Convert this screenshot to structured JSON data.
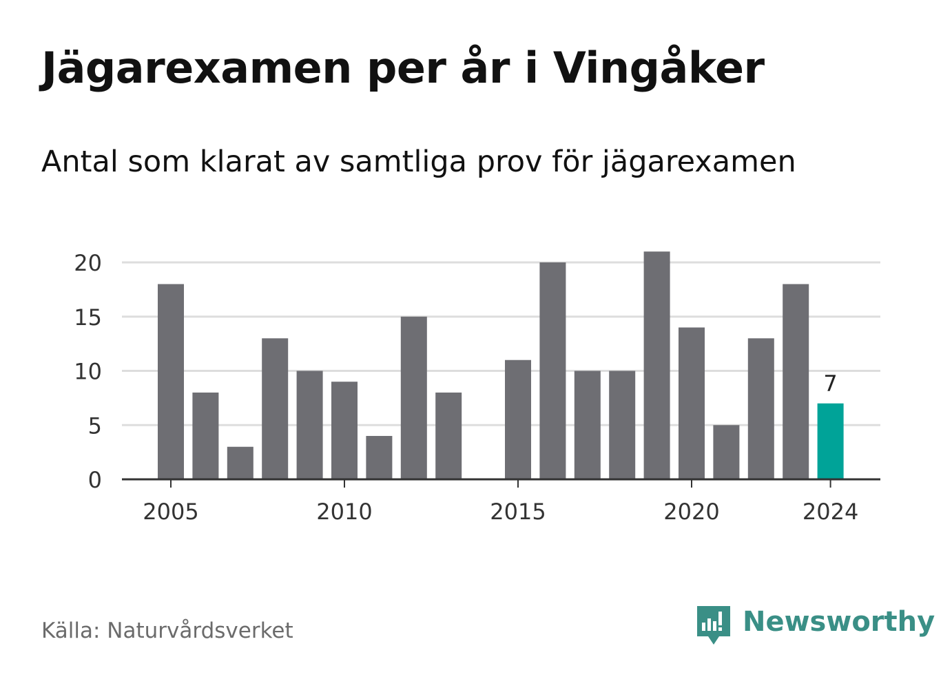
{
  "title": "Jägarexamen per år i Vingåker",
  "subtitle": "Antal som klarat av samtliga prov för jägarexamen",
  "source": "Källa: Naturvårdsverket",
  "brand": {
    "name": "Newsworthy",
    "icon": "newsworthy-logo-icon"
  },
  "colors": {
    "bar": "#6e6e73",
    "highlight": "#00a398",
    "grid": "#dddddd",
    "axis": "#333333",
    "brand": "#3a8f86"
  },
  "chart_data": {
    "type": "bar",
    "title": "Jägarexamen per år i Vingåker",
    "subtitle": "Antal som klarat av samtliga prov för jägarexamen",
    "xlabel": "",
    "ylabel": "",
    "x": [
      2005,
      2006,
      2007,
      2008,
      2009,
      2010,
      2011,
      2012,
      2013,
      2014,
      2015,
      2016,
      2017,
      2018,
      2019,
      2020,
      2021,
      2022,
      2023,
      2024
    ],
    "values": [
      18,
      8,
      3,
      13,
      10,
      9,
      4,
      15,
      8,
      0,
      11,
      20,
      10,
      10,
      21,
      14,
      5,
      13,
      18,
      7
    ],
    "ylim": [
      0,
      22
    ],
    "yticks": [
      0,
      5,
      10,
      15,
      20
    ],
    "xticks": [
      2005,
      2010,
      2015,
      2020,
      2024
    ],
    "highlight": {
      "x": 2024,
      "label": "7"
    },
    "grid": true,
    "legend": "none"
  }
}
